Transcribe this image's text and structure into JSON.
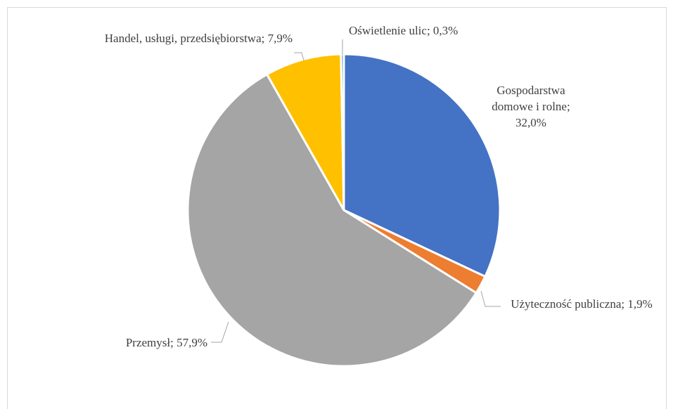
{
  "chart_data": {
    "type": "pie",
    "values": [
      32.0,
      1.9,
      57.9,
      7.9,
      0.3
    ],
    "value_labels": [
      "Gospodarstwa domowe i rolne; 32,0%",
      "Użyteczność publiczna; 1,9%",
      "Przemysł; 57,9%",
      "Handel, usługi, przedsiębiorstwa; 7,9%",
      "Oświetlenie ulic; 0,3%"
    ],
    "colors": [
      "#4472c4",
      "#ed7d31",
      "#a5a5a5",
      "#ffc000",
      "#5b9bd5"
    ]
  }
}
